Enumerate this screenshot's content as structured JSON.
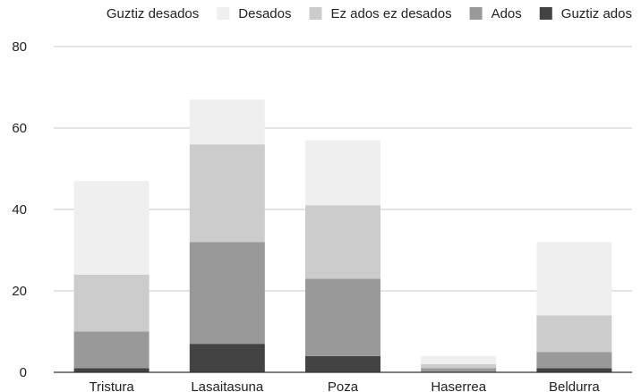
{
  "chart_data": {
    "type": "bar",
    "stacked": true,
    "title": "",
    "xlabel": "",
    "ylabel": "",
    "ylim": [
      0,
      80
    ],
    "yticks": [
      0,
      20,
      40,
      60,
      80
    ],
    "grid": true,
    "legend_position": "top",
    "categories": [
      "Tristura",
      "Lasaitasuna",
      "Poza",
      "Haserrea",
      "Beldurra"
    ],
    "series": [
      {
        "name": "Guztiz ados",
        "color": "#434343",
        "values": [
          1,
          7,
          4,
          0,
          1
        ]
      },
      {
        "name": "Ados",
        "color": "#999999",
        "values": [
          9,
          25,
          19,
          1,
          4
        ]
      },
      {
        "name": "Ez ados ez desados",
        "color": "#cccccc",
        "values": [
          14,
          24,
          18,
          1,
          9
        ]
      },
      {
        "name": "Desados",
        "color": "#efefef",
        "values": [
          23,
          11,
          16,
          2,
          18
        ]
      },
      {
        "name": "Guztiz desados",
        "color": "#ffffff",
        "values": [
          0,
          0,
          0,
          0,
          0
        ]
      }
    ],
    "legend_order": [
      "Guztiz desados",
      "Desados",
      "Ez ados ez desados",
      "Ados",
      "Guztiz ados"
    ]
  }
}
